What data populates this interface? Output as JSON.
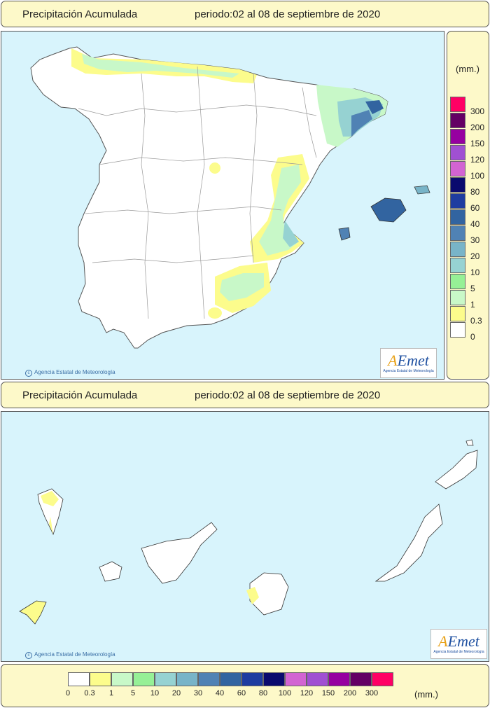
{
  "top_title": {
    "label": "Precipitación Acumulada",
    "period": "periodo:02 al 08 de septiembre de 2020"
  },
  "bottom_title": {
    "label": "Precipitación Acumulada",
    "period": "periodo:02 al 08 de septiembre de 2020"
  },
  "credit": "Agencia Estatal de Meteorología",
  "logo": {
    "brand_a": "A",
    "brand_rest": "Emet",
    "subtitle": "Agencia Estatal de Meteorología"
  },
  "legend": {
    "unit": "(mm.)",
    "vertical_labels": [
      "300",
      "200",
      "150",
      "120",
      "100",
      "80",
      "60",
      "40",
      "30",
      "20",
      "10",
      "5",
      "1",
      "0.3",
      "0"
    ],
    "horizontal_labels": [
      "0",
      "0.3",
      "1",
      "5",
      "10",
      "20",
      "30",
      "40",
      "60",
      "80",
      "100",
      "120",
      "150",
      "200",
      "300"
    ],
    "colors": [
      "#ffffff",
      "#fcfc8c",
      "#c8f8c8",
      "#96f096",
      "#96d2d2",
      "#78b4c8",
      "#5082b4",
      "#3264a0",
      "#1e3ca0",
      "#0a0a6e",
      "#d264d2",
      "#a050d2",
      "#9600a0",
      "#640064",
      "#ff0064"
    ]
  },
  "map_colors": {
    "sea": "#d8f4fc",
    "land": "#ffffff",
    "border": "#999999"
  }
}
